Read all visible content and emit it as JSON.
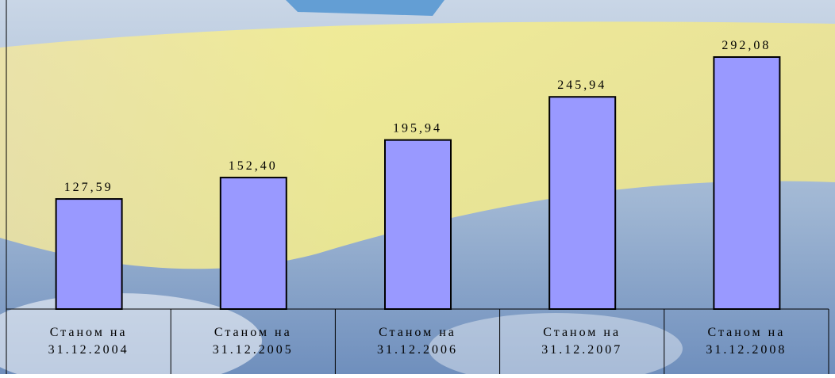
{
  "chart_data": {
    "type": "bar",
    "categories": [
      "Станом на\n31.12.2004",
      "Станом на\n31.12.2005",
      "Станом на\n31.12.2006",
      "Станом на\n31.12.2007",
      "Станом на\n31.12.2008"
    ],
    "values": [
      127.59,
      152.4,
      195.94,
      245.94,
      292.08
    ],
    "value_labels": [
      "127,59",
      "152,40",
      "195,94",
      "245,94",
      "292,08"
    ],
    "color": "#9999ff"
  }
}
